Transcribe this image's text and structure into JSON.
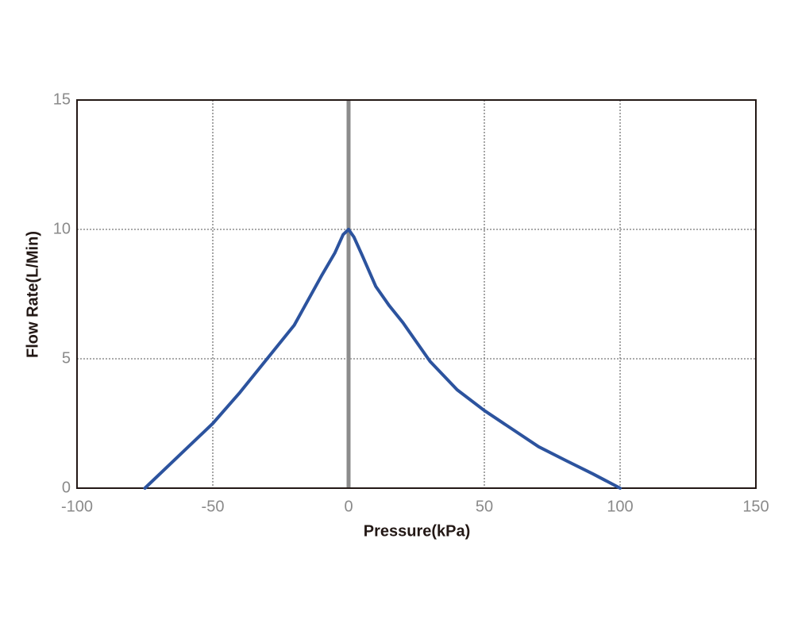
{
  "chart_data": {
    "type": "line",
    "x_label": "Pressure(kPa)",
    "y_label": "Flow Rate(L/Min)",
    "xlim": [
      -100,
      150
    ],
    "xticks": [
      -100,
      -50,
      0,
      50,
      100,
      150
    ],
    "ylim": [
      0,
      15
    ],
    "yticks": [
      0,
      5,
      10,
      15
    ],
    "grid": true,
    "x": [
      -75,
      -60,
      -50,
      -40,
      -30,
      -20,
      -10,
      -5,
      -2,
      0,
      2,
      5,
      10,
      15,
      20,
      30,
      40,
      50,
      60,
      70,
      80,
      90,
      100
    ],
    "series": [
      {
        "color": "#2c539e",
        "values": [
          0,
          1.5,
          2.5,
          3.7,
          5.0,
          6.3,
          8.2,
          9.1,
          9.8,
          10,
          9.7,
          9.0,
          7.8,
          7.05,
          6.4,
          4.9,
          3.8,
          3.0,
          2.3,
          1.6,
          1.07,
          0.55,
          0
        ]
      }
    ]
  }
}
